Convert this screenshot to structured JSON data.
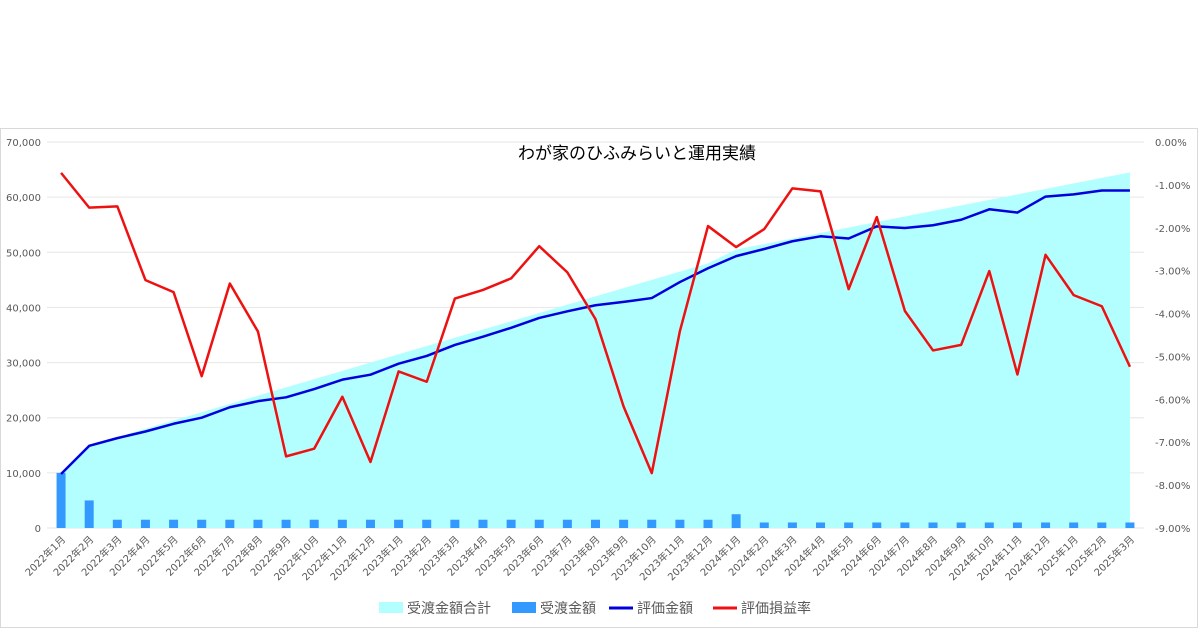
{
  "chart_data": {
    "type": "combo",
    "title": "わが家のひふみらいと運用実績",
    "categories": [
      "2022年1月",
      "2022年2月",
      "2022年3月",
      "2022年4月",
      "2022年5月",
      "2022年6月",
      "2022年7月",
      "2022年8月",
      "2022年9月",
      "2022年10月",
      "2022年11月",
      "2022年12月",
      "2023年1月",
      "2023年2月",
      "2023年3月",
      "2023年4月",
      "2023年5月",
      "2023年6月",
      "2023年7月",
      "2023年8月",
      "2023年9月",
      "2023年10月",
      "2023年11月",
      "2023年12月",
      "2024年1月",
      "2024年2月",
      "2024年3月",
      "2024年4月",
      "2024年5月",
      "2024年6月",
      "2024年7月",
      "2024年8月",
      "2024年9月",
      "2024年10月",
      "2024年11月",
      "2024年12月",
      "2025年1月",
      "2025年2月",
      "2025年3月"
    ],
    "y_left": {
      "min": 0,
      "max": 70000,
      "step": 10000,
      "ticks": [
        "0",
        "10,000",
        "20,000",
        "30,000",
        "40,000",
        "50,000",
        "60,000",
        "70,000"
      ]
    },
    "y_right": {
      "min": -9,
      "max": 0,
      "step": 1,
      "ticks": [
        "0.00%",
        "-1.00%",
        "-2.00%",
        "-3.00%",
        "-4.00%",
        "-5.00%",
        "-6.00%",
        "-7.00%",
        "-8.00%",
        "-9.00%"
      ]
    },
    "series": [
      {
        "name": "受渡金額合計",
        "type": "area",
        "axis": "left",
        "color": "#b3ffff",
        "values": [
          10000,
          15000,
          16500,
          18000,
          19500,
          21000,
          22500,
          24000,
          25500,
          27000,
          28500,
          30000,
          31500,
          33000,
          34500,
          36000,
          37500,
          39000,
          40500,
          42000,
          43500,
          45000,
          46500,
          48000,
          50500,
          51500,
          52500,
          53500,
          54500,
          55500,
          56500,
          57500,
          58500,
          59500,
          60500,
          61500,
          62500,
          63500,
          64500
        ]
      },
      {
        "name": "受渡金額",
        "type": "bar",
        "axis": "left",
        "color": "#3399ff",
        "values": [
          10000,
          5000,
          1500,
          1500,
          1500,
          1500,
          1500,
          1500,
          1500,
          1500,
          1500,
          1500,
          1500,
          1500,
          1500,
          1500,
          1500,
          1500,
          1500,
          1500,
          1500,
          1500,
          1500,
          1500,
          2500,
          1000,
          1000,
          1000,
          1000,
          1000,
          1000,
          1000,
          1000,
          1000,
          1000,
          1000,
          1000,
          1000,
          1000
        ]
      },
      {
        "name": "評価金額",
        "type": "line",
        "axis": "left",
        "color": "#0000dd",
        "values": [
          9800,
          14900,
          16300,
          17500,
          18900,
          20000,
          21900,
          23000,
          23700,
          25200,
          26900,
          27800,
          29800,
          31200,
          33200,
          34700,
          36300,
          38100,
          39300,
          40400,
          41000,
          41700,
          44600,
          47100,
          49300,
          50600,
          52000,
          52900,
          52500,
          54700,
          54400,
          54900,
          55900,
          57800,
          57200,
          60100,
          60500,
          61200,
          61200
        ]
      },
      {
        "name": "評価損益率",
        "type": "line",
        "axis": "right",
        "color": "#ee1111",
        "values": [
          -0.72,
          -1.53,
          -1.5,
          -3.22,
          -3.5,
          -5.46,
          -3.3,
          -4.42,
          -7.33,
          -7.15,
          -5.94,
          -7.46,
          -5.35,
          -5.59,
          -3.65,
          -3.45,
          -3.18,
          -2.43,
          -3.04,
          -4.13,
          -6.17,
          -7.72,
          -4.41,
          -1.96,
          -2.45,
          -2.03,
          -1.08,
          -1.15,
          -3.43,
          -1.75,
          -3.94,
          -4.86,
          -4.73,
          -3.01,
          -5.42,
          -2.63,
          -3.57,
          -3.83,
          -5.24
        ]
      }
    ],
    "grid": true,
    "legend": "bottom"
  }
}
